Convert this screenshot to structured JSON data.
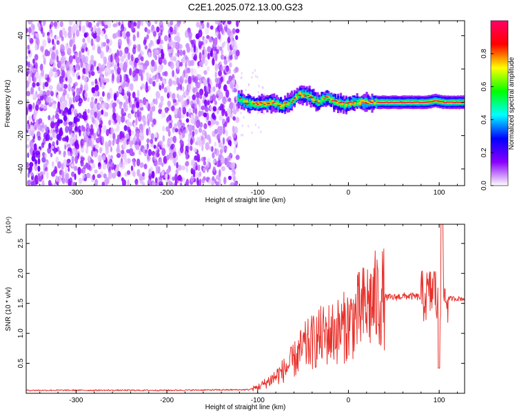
{
  "figure": {
    "title": "C2E1.2025.072.13.00.G23"
  },
  "chart_data": [
    {
      "type": "heatmap",
      "xlabel": "Height of straight line (km)",
      "ylabel": "Frequency (Hz)",
      "xlim": [
        -355,
        128
      ],
      "ylim": [
        -50,
        49
      ],
      "x_ticks": [
        -300,
        -200,
        -100,
        0,
        100
      ],
      "y_ticks": [
        -40,
        -20,
        0,
        20,
        40
      ],
      "signal_track": {
        "x": [
          -125,
          -115,
          -105,
          -95,
          -85,
          -75,
          -65,
          -55,
          -45,
          -35,
          -25,
          -15,
          -5,
          5,
          15,
          30,
          50,
          70,
          85,
          95,
          105,
          128
        ],
        "y": [
          3,
          0,
          -1,
          -1,
          0,
          -2,
          0,
          5,
          4,
          0,
          3,
          0,
          -1,
          0,
          0,
          0,
          0,
          0,
          0,
          1,
          0,
          0
        ]
      },
      "colorbar": {
        "label": "Normalized spectral amplitude",
        "range": [
          0,
          1
        ],
        "ticks": [
          0.0,
          0.2,
          0.4,
          0.6,
          0.8
        ],
        "colors": [
          "#ffffff",
          "#8a00ff",
          "#0000ff",
          "#00ffff",
          "#00ff00",
          "#ffff00",
          "#ff0000",
          "#ff0066"
        ]
      }
    },
    {
      "type": "line",
      "xlabel": "Height of straight line (km)",
      "ylabel": "SNR (10 * v/v)",
      "y_multiplier": "(x10⁴)",
      "xlim": [
        -355,
        128
      ],
      "ylim": [
        0,
        2.82
      ],
      "x_ticks": [
        -300,
        -200,
        -100,
        0,
        100
      ],
      "y_ticks": [
        0.5,
        1.0,
        1.5,
        2.0,
        2.5
      ],
      "series": [
        {
          "color": "#e8302a",
          "x": [
            -355,
            -200,
            -110,
            -100,
            -90,
            -80,
            -70,
            -60,
            -50,
            -40,
            -30,
            -20,
            -10,
            0,
            10,
            20,
            30,
            40,
            50,
            60,
            70,
            80,
            90,
            95,
            100,
            103,
            106,
            110,
            128
          ],
          "y": [
            0.05,
            0.05,
            0.06,
            0.1,
            0.18,
            0.28,
            0.4,
            0.55,
            0.75,
            0.85,
            0.95,
            1.0,
            1.05,
            1.15,
            1.3,
            1.45,
            1.55,
            1.6,
            1.6,
            1.62,
            1.62,
            1.6,
            1.65,
            1.8,
            1.2,
            2.1,
            1.6,
            1.58,
            1.58
          ]
        }
      ]
    }
  ]
}
